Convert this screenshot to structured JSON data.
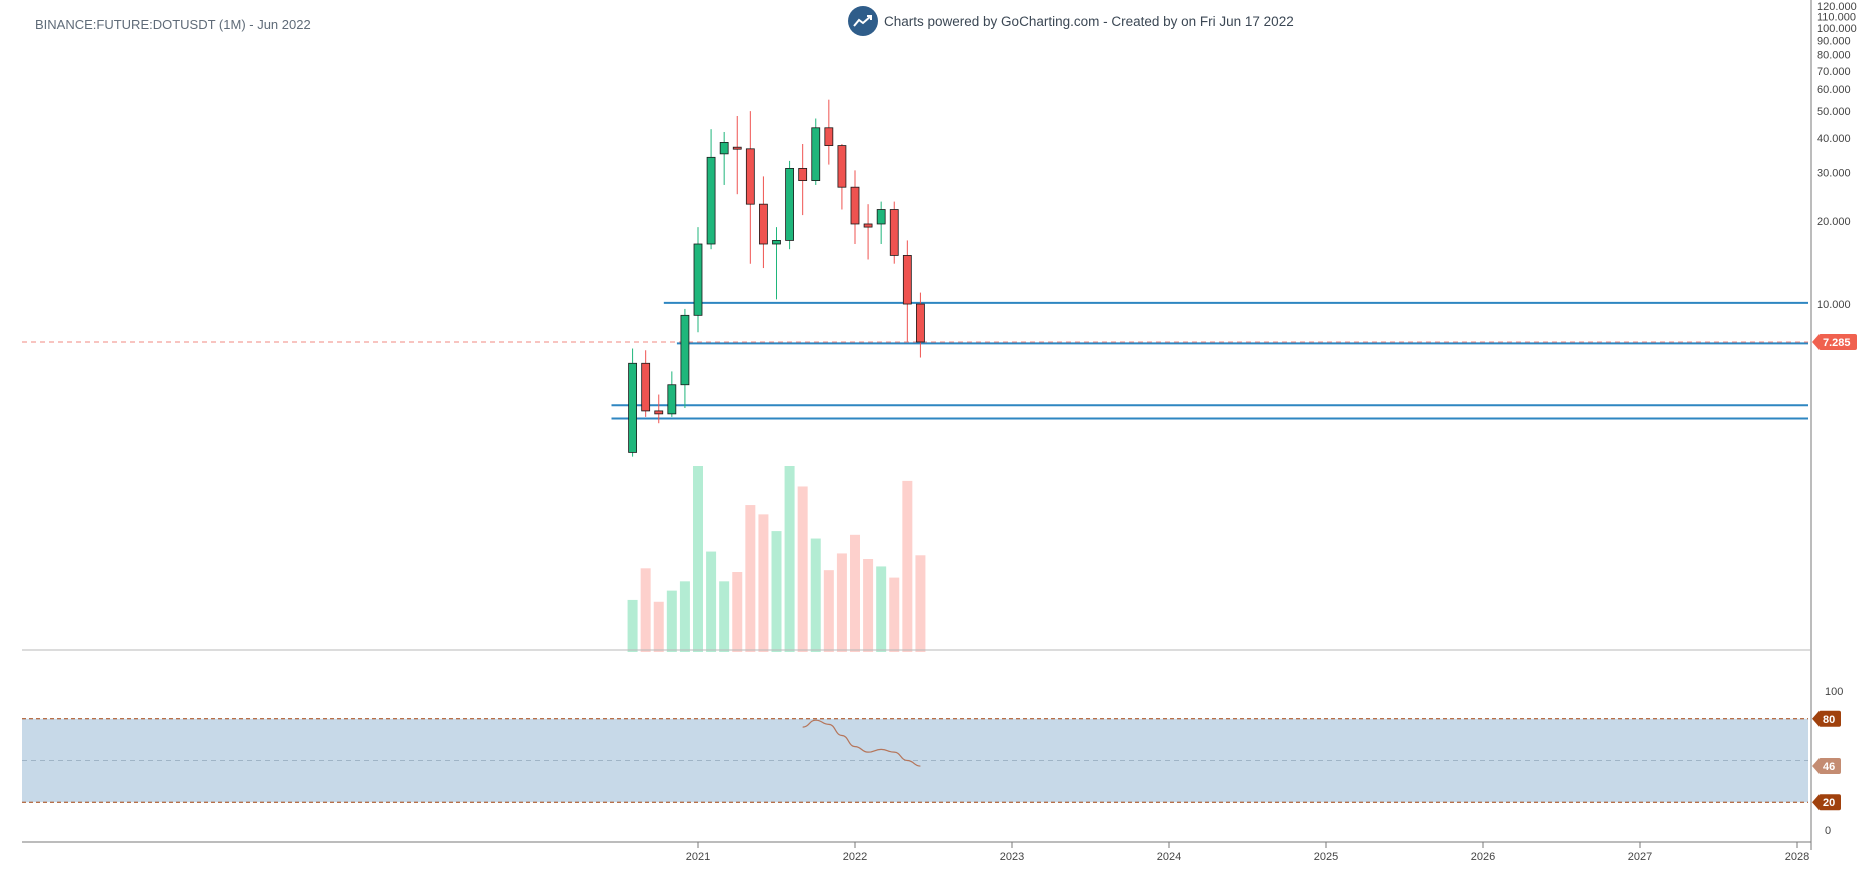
{
  "header": {
    "symbol_title": "BINANCE:FUTURE:DOTUSDT (1M) - Jun 2022",
    "credit": "Charts powered by GoCharting.com - Created by  on Fri Jun 17 2022",
    "logo_icon": "trend-line-icon"
  },
  "colors": {
    "up": "#1fb67b",
    "down": "#ef5350",
    "up_volume": "#b3ecd3",
    "down_volume": "#fdd0cc",
    "level_line": "#2e86c1",
    "rsi_band": "#c7d9e8",
    "rsi_line": "#b5755a",
    "rsi_bound": "#a0410d",
    "price_tag": "#f0614f"
  },
  "chart_data": {
    "type": "candlestick",
    "price_axis": {
      "scale": "log",
      "ticks": [
        "120.000",
        "110.000",
        "100.000",
        "90.000",
        "80.000",
        "70.000",
        "60.000",
        "50.000",
        "40.000",
        "30.000",
        "20.000",
        "10.000"
      ]
    },
    "time_axis": {
      "ticks": [
        "2021",
        "2022",
        "2023",
        "2024",
        "2025",
        "2026",
        "2027",
        "2028"
      ],
      "range": [
        "2020-06",
        "2028-01"
      ]
    },
    "last_price": "7.285",
    "candles": [
      {
        "date": "2020-08",
        "open": 2.9,
        "high": 6.9,
        "low": 2.8,
        "close": 6.1
      },
      {
        "date": "2020-09",
        "open": 6.1,
        "high": 6.8,
        "low": 3.9,
        "close": 4.1
      },
      {
        "date": "2020-10",
        "open": 4.1,
        "high": 4.7,
        "low": 3.7,
        "close": 4.0
      },
      {
        "date": "2020-11",
        "open": 4.0,
        "high": 5.7,
        "low": 3.9,
        "close": 5.1
      },
      {
        "date": "2020-12",
        "open": 5.1,
        "high": 9.6,
        "low": 4.2,
        "close": 9.1
      },
      {
        "date": "2021-01",
        "open": 9.1,
        "high": 19.0,
        "low": 7.9,
        "close": 16.5
      },
      {
        "date": "2021-02",
        "open": 16.5,
        "high": 43.0,
        "low": 15.8,
        "close": 34.0
      },
      {
        "date": "2021-03",
        "open": 35.0,
        "high": 42.0,
        "low": 27.0,
        "close": 38.5
      },
      {
        "date": "2021-04",
        "open": 37.0,
        "high": 48.0,
        "low": 25.0,
        "close": 36.5
      },
      {
        "date": "2021-05",
        "open": 36.5,
        "high": 50.0,
        "low": 14.0,
        "close": 23.0
      },
      {
        "date": "2021-06",
        "open": 23.0,
        "high": 29.0,
        "low": 13.5,
        "close": 16.5
      },
      {
        "date": "2021-07",
        "open": 16.5,
        "high": 19.0,
        "low": 10.4,
        "close": 17.0
      },
      {
        "date": "2021-08",
        "open": 17.0,
        "high": 33.0,
        "low": 15.8,
        "close": 31.0
      },
      {
        "date": "2021-09",
        "open": 31.0,
        "high": 38.0,
        "low": 21.0,
        "close": 28.0
      },
      {
        "date": "2021-10",
        "open": 28.0,
        "high": 47.0,
        "low": 27.0,
        "close": 43.5
      },
      {
        "date": "2021-11",
        "open": 43.5,
        "high": 55.0,
        "low": 32.0,
        "close": 37.5
      },
      {
        "date": "2021-12",
        "open": 37.5,
        "high": 38.0,
        "low": 22.0,
        "close": 26.5
      },
      {
        "date": "2022-01",
        "open": 26.5,
        "high": 30.5,
        "low": 16.5,
        "close": 19.5
      },
      {
        "date": "2022-02",
        "open": 19.5,
        "high": 23.0,
        "low": 14.5,
        "close": 19.0
      },
      {
        "date": "2022-03",
        "open": 19.5,
        "high": 23.5,
        "low": 16.5,
        "close": 22.0
      },
      {
        "date": "2022-04",
        "open": 22.0,
        "high": 23.5,
        "low": 14.0,
        "close": 15.0
      },
      {
        "date": "2022-05",
        "open": 15.0,
        "high": 17.0,
        "low": 7.3,
        "close": 10.0
      },
      {
        "date": "2022-06",
        "open": 10.0,
        "high": 11.0,
        "low": 6.4,
        "close": 7.285
      }
    ],
    "volume": [
      28,
      45,
      27,
      33,
      38,
      100,
      54,
      38,
      43,
      79,
      74,
      65,
      100,
      89,
      61,
      44,
      53,
      63,
      50,
      46,
      40,
      92,
      52
    ],
    "horizontal_levels": [
      {
        "price": 10.1,
        "from": "2020-11"
      },
      {
        "price": 7.2,
        "from": "2020-12"
      },
      {
        "price": 4.3,
        "from": "2020-07"
      },
      {
        "price": 3.85,
        "from": "2020-07"
      }
    ],
    "rsi": {
      "axis_ticks": [
        "100",
        "0"
      ],
      "upper": "80",
      "lower": "20",
      "current": "46",
      "midline": 50,
      "values": [
        {
          "date": "2021-09",
          "value": 74
        },
        {
          "date": "2021-10",
          "value": 79
        },
        {
          "date": "2021-11",
          "value": 76
        },
        {
          "date": "2021-12",
          "value": 68
        },
        {
          "date": "2022-01",
          "value": 60
        },
        {
          "date": "2022-02",
          "value": 56
        },
        {
          "date": "2022-03",
          "value": 58
        },
        {
          "date": "2022-04",
          "value": 56
        },
        {
          "date": "2022-05",
          "value": 50
        },
        {
          "date": "2022-06",
          "value": 46
        }
      ]
    }
  }
}
